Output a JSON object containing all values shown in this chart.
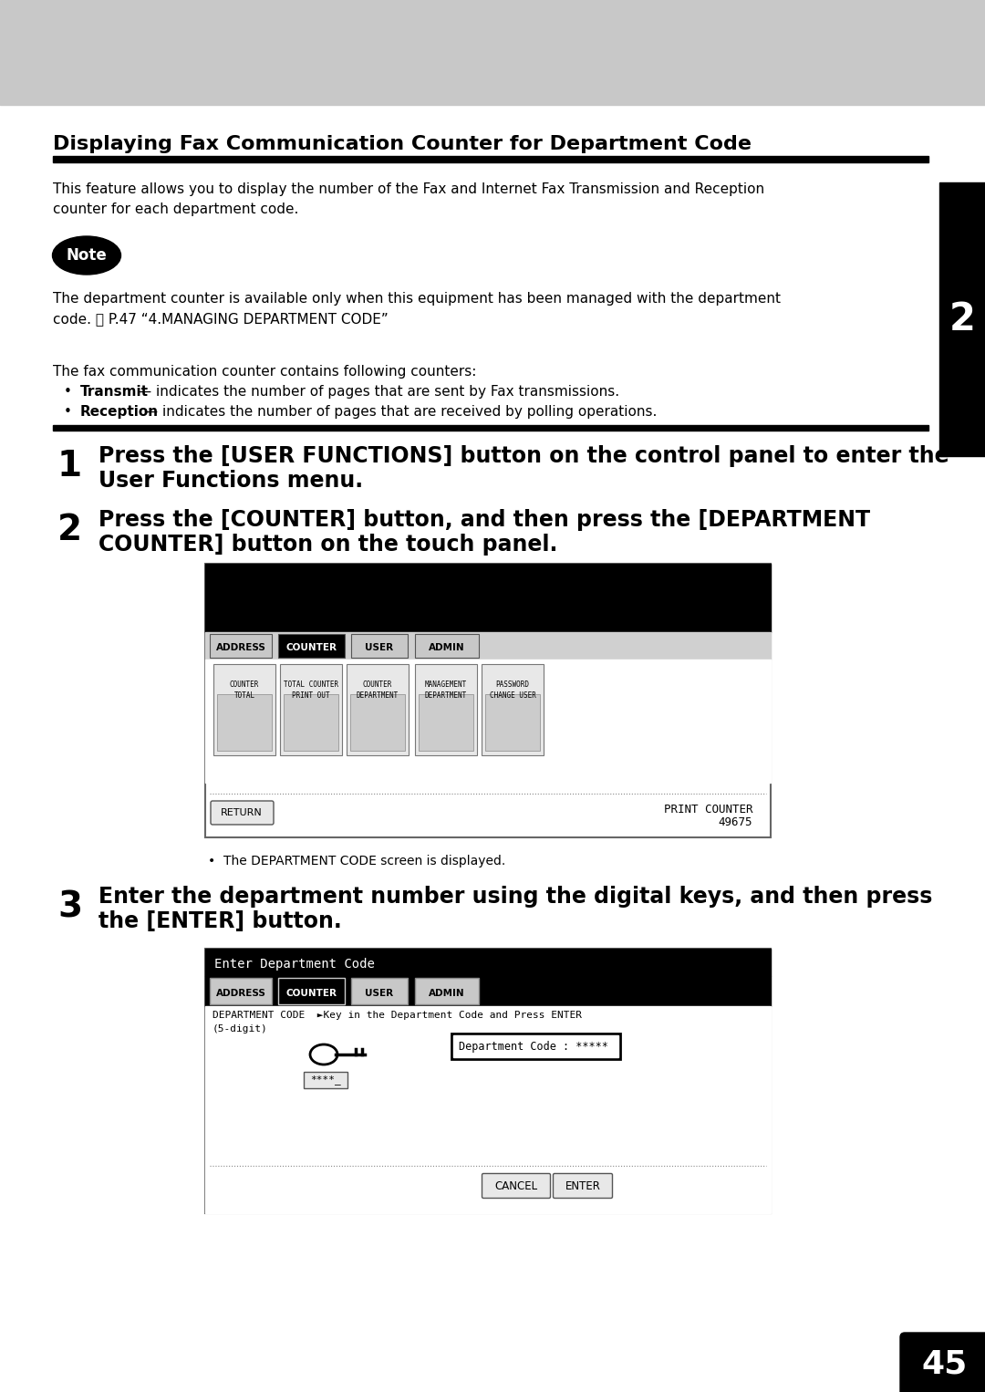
{
  "page_bg": "#ffffff",
  "header_bg": "#c8c8c8",
  "sidebar_bg": "#000000",
  "sidebar_text": "2",
  "page_number": "45",
  "title": "Displaying Fax Communication Counter for Department Code",
  "intro_text1": "This feature allows you to display the number of the Fax and Internet Fax Transmission and Reception",
  "intro_text2": "counter for each department code.",
  "note_text": "Note",
  "note_body1": "The department counter is available only when this equipment has been managed with the department",
  "note_body2": "code. ⎙ P.47 “4.MANAGING DEPARTMENT CODE”",
  "fax_counter_intro": "The fax communication counter contains following counters:",
  "bullet1_bold": "Transmit",
  "bullet1_rest": " — indicates the number of pages that are sent by Fax transmissions.",
  "bullet2_bold": "Reception",
  "bullet2_rest": " — indicates the number of pages that are received by polling operations.",
  "step1_num": "1",
  "step1_line1": "Press the [USER FUNCTIONS] button on the control panel to enter the",
  "step1_line2": "User Functions menu.",
  "step2_num": "2",
  "step2_line1": "Press the [COUNTER] button, and then press the [DEPARTMENT",
  "step2_line2": "COUNTER] button on the touch panel.",
  "step3_num": "3",
  "step3_line1": "Enter the department number using the digital keys, and then press",
  "step3_line2": "the [ENTER] button.",
  "screen1_note": "The DEPARTMENT CODE screen is displayed.",
  "scr1_tabs": [
    "ADDRESS",
    "COUNTER",
    "USER",
    "ADMIN"
  ],
  "scr1_selected_tab": 1,
  "scr1_icons": [
    "TOTAL\nCOUNTER",
    "PRINT OUT\nTOTAL COUNTER",
    "DEPARTMENT\nCOUNTER",
    "DEPARTMENT\nMANAGEMENT",
    "CHANGE USER\nPASSWORD"
  ],
  "scr1_print_counter": "PRINT COUNTER",
  "scr1_print_value": "49675",
  "scr1_return": "RETURN",
  "scr2_title": "Enter Department Code",
  "scr2_tabs": [
    "ADDRESS",
    "COUNTER",
    "USER",
    "ADMIN"
  ],
  "scr2_selected_tab": 1,
  "scr2_dept_line1": "DEPARTMENT CODE  ►Key in the Department Code and Press ENTER",
  "scr2_dept_line2": "(5-digit)",
  "scr2_input_label": "Department Code : *****",
  "scr2_keypad": "****_",
  "scr2_cancel": "CANCEL",
  "scr2_enter": "ENTER"
}
